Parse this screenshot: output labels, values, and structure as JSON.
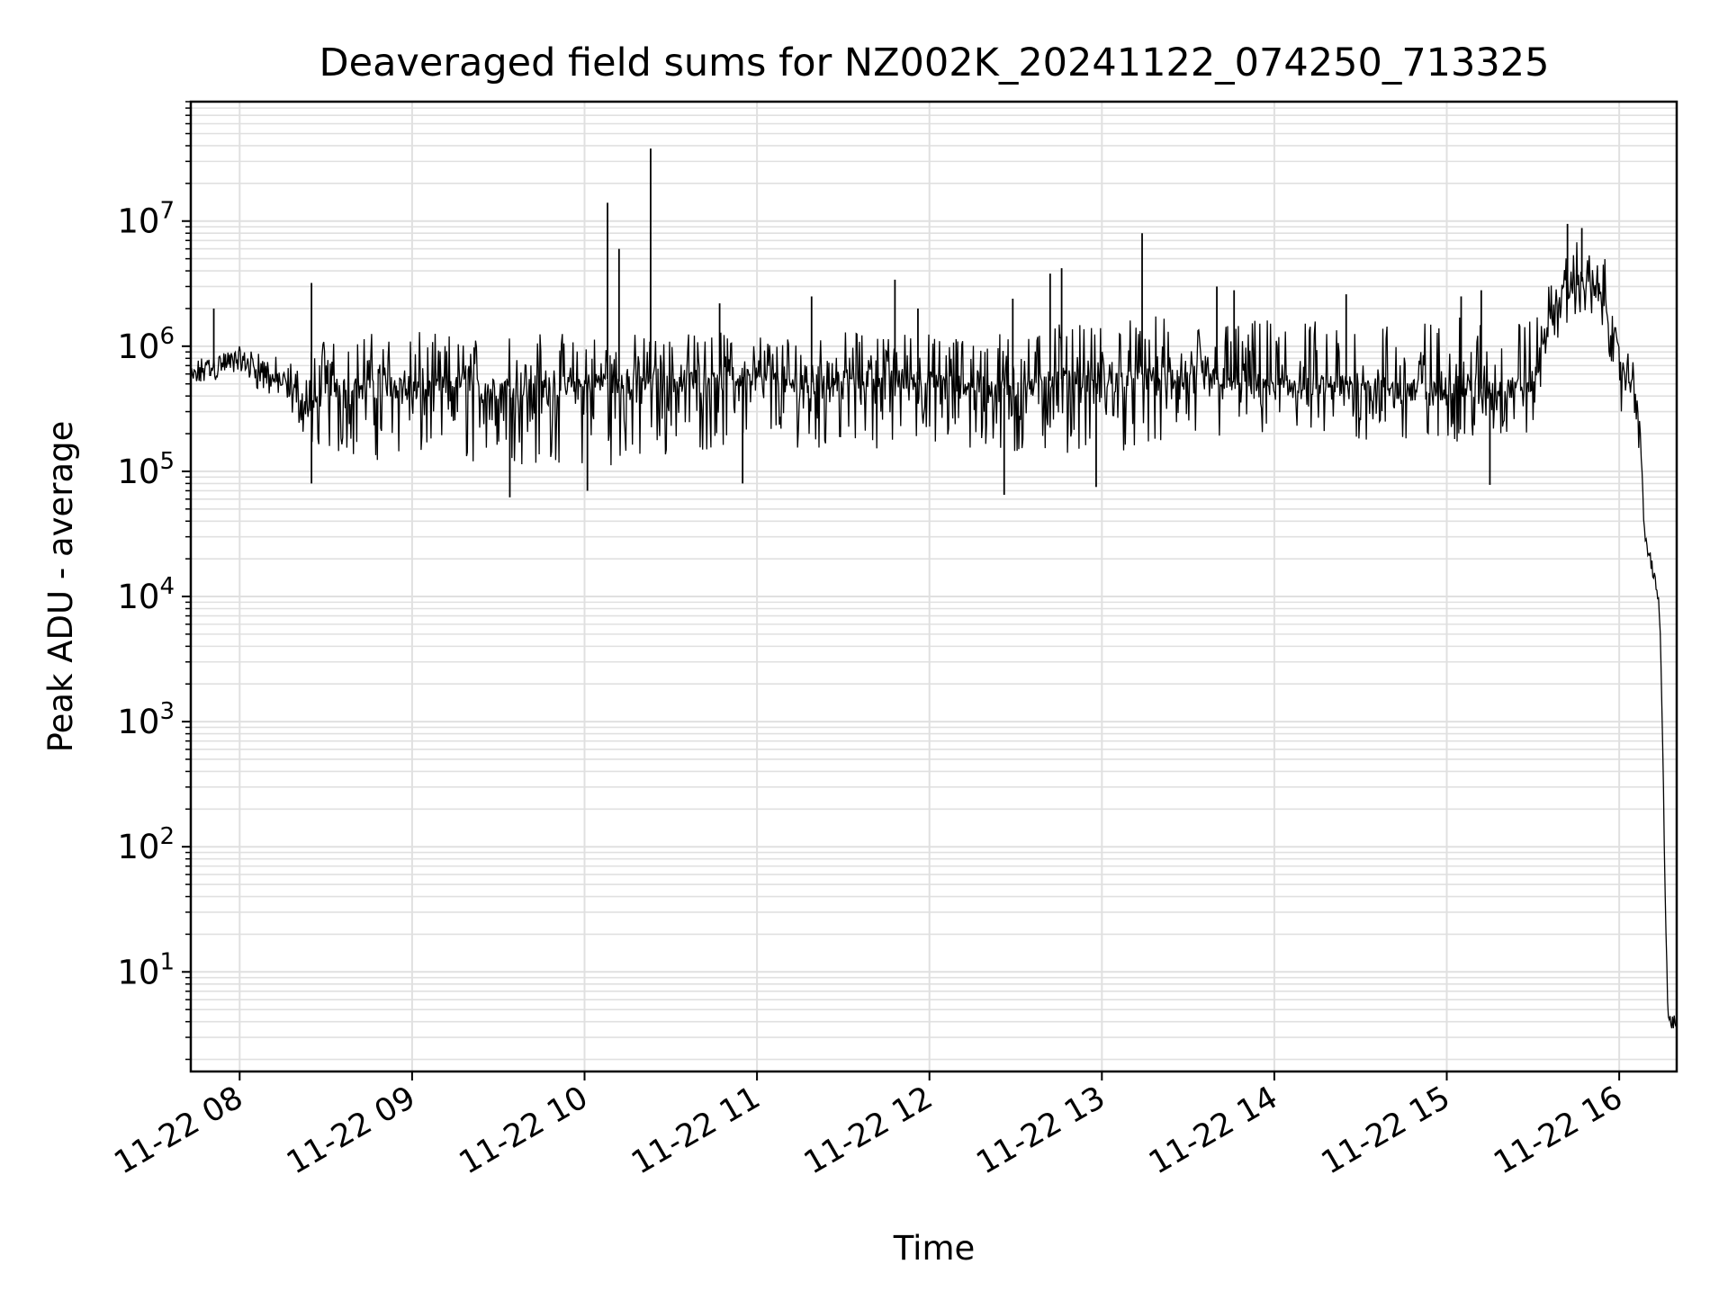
{
  "chart_data": {
    "type": "line",
    "title": "Deaveraged field sums for NZ002K_20241122_074250_713325",
    "xlabel": "Time",
    "ylabel": "Peak ADU - average",
    "yscale": "log",
    "ylim": [
      1.6,
      90000000
    ],
    "xlim": [
      "2024-11-22 07:43",
      "2024-11-22 16:20"
    ],
    "grid": true,
    "line_color": "#000000",
    "grid_color": "#e0e0e0",
    "x_tick_labels": [
      "11-22 08",
      "11-22 09",
      "11-22 10",
      "11-22 11",
      "11-22 12",
      "11-22 13",
      "11-22 14",
      "11-22 15",
      "11-22 16"
    ],
    "y_tick_labels": [
      {
        "base": "10",
        "exp": "1"
      },
      {
        "base": "10",
        "exp": "2"
      },
      {
        "base": "10",
        "exp": "3"
      },
      {
        "base": "10",
        "exp": "4"
      },
      {
        "base": "10",
        "exp": "5"
      },
      {
        "base": "10",
        "exp": "6"
      },
      {
        "base": "10",
        "exp": "7"
      }
    ],
    "series": [
      {
        "x": [
          "2024-11-22 07:43",
          "2024-11-22 07:50",
          "2024-11-22 08:00",
          "2024-11-22 08:05",
          "2024-11-22 08:10",
          "2024-11-22 08:15",
          "2024-11-22 08:20",
          "2024-11-22 08:25",
          "2024-11-22 08:30",
          "2024-11-22 08:40",
          "2024-11-22 08:50",
          "2024-11-22 09:00",
          "2024-11-22 09:15",
          "2024-11-22 09:30",
          "2024-11-22 09:45",
          "2024-11-22 10:00",
          "2024-11-22 10:08",
          "2024-11-22 10:15",
          "2024-11-22 10:23",
          "2024-11-22 10:30",
          "2024-11-22 10:45",
          "2024-11-22 11:00",
          "2024-11-22 11:15",
          "2024-11-22 11:30",
          "2024-11-22 11:45",
          "2024-11-22 12:00",
          "2024-11-22 12:15",
          "2024-11-22 12:30",
          "2024-11-22 12:45",
          "2024-11-22 13:00",
          "2024-11-22 13:15",
          "2024-11-22 13:30",
          "2024-11-22 13:45",
          "2024-11-22 14:00",
          "2024-11-22 14:15",
          "2024-11-22 14:30",
          "2024-11-22 14:45",
          "2024-11-22 15:00",
          "2024-11-22 15:15",
          "2024-11-22 15:30",
          "2024-11-22 15:35",
          "2024-11-22 15:40",
          "2024-11-22 15:45",
          "2024-11-22 15:50",
          "2024-11-22 15:55",
          "2024-11-22 16:00",
          "2024-11-22 16:03",
          "2024-11-22 16:06",
          "2024-11-22 16:09",
          "2024-11-22 16:12",
          "2024-11-22 16:14",
          "2024-11-22 16:15",
          "2024-11-22 16:16",
          "2024-11-22 16:17",
          "2024-11-22 16:20"
        ],
        "y": [
          550000,
          700000,
          800000,
          700000,
          600000,
          500000,
          400000,
          300000,
          500000,
          450000,
          500000,
          450000,
          500000,
          450000,
          480000,
          500000,
          550000,
          500000,
          550000,
          520000,
          600000,
          550000,
          500000,
          550000,
          600000,
          520000,
          500000,
          450000,
          550000,
          500000,
          600000,
          520000,
          550000,
          500000,
          480000,
          500000,
          450000,
          480000,
          450000,
          500000,
          1500000,
          2500000,
          3500000,
          3000000,
          2500000,
          800000,
          600000,
          500000,
          30000,
          15000,
          8000,
          1000,
          45,
          4,
          4
        ],
        "low": [
          450000,
          500000,
          600000,
          450000,
          400000,
          350000,
          250000,
          150000,
          130000,
          130000,
          120000,
          120000,
          120000,
          110000,
          110000,
          110000,
          110000,
          120000,
          110000,
          130000,
          150000,
          180000,
          150000,
          160000,
          150000,
          160000,
          130000,
          130000,
          140000,
          140000,
          150000,
          160000,
          180000,
          180000,
          170000,
          170000,
          160000,
          170000,
          170000,
          180000,
          800000,
          1200000,
          1800000,
          1500000,
          1000000,
          300000,
          300000,
          250000,
          20000,
          10000,
          5000,
          500,
          10,
          4,
          4
        ],
        "high": [
          750000,
          900000,
          1000000,
          1000000,
          900000,
          800000,
          700000,
          1200000,
          1300000,
          1300000,
          1300000,
          1300000,
          1300000,
          1300000,
          1300000,
          1300000,
          1300000,
          1300000,
          1300000,
          1300000,
          1300000,
          1300000,
          1200000,
          1300000,
          1300000,
          1300000,
          1300000,
          1300000,
          1500000,
          1500000,
          1800000,
          1600000,
          1600000,
          1700000,
          1700000,
          1600000,
          1600000,
          1700000,
          1700000,
          1800000,
          3000000,
          5000000,
          7000000,
          6000000,
          5000000,
          1000000,
          900000,
          800000,
          60000,
          20000,
          13000,
          2000,
          50,
          5,
          5
        ]
      }
    ],
    "spikes": [
      {
        "x": "2024-11-22 07:51",
        "y": 2000000
      },
      {
        "x": "2024-11-22 08:25",
        "y": 3200000
      },
      {
        "x": "2024-11-22 10:08",
        "y": 14000000
      },
      {
        "x": "2024-11-22 10:12",
        "y": 6000000
      },
      {
        "x": "2024-11-22 10:23",
        "y": 38000000
      },
      {
        "x": "2024-11-22 10:47",
        "y": 2200000
      },
      {
        "x": "2024-11-22 11:19",
        "y": 2500000
      },
      {
        "x": "2024-11-22 11:48",
        "y": 3400000
      },
      {
        "x": "2024-11-22 11:56",
        "y": 2000000
      },
      {
        "x": "2024-11-22 12:29",
        "y": 2400000
      },
      {
        "x": "2024-11-22 12:42",
        "y": 3800000
      },
      {
        "x": "2024-11-22 12:46",
        "y": 4200000
      },
      {
        "x": "2024-11-22 13:14",
        "y": 8000000
      },
      {
        "x": "2024-11-22 13:40",
        "y": 3000000
      },
      {
        "x": "2024-11-22 13:46",
        "y": 2800000
      },
      {
        "x": "2024-11-22 14:25",
        "y": 2600000
      },
      {
        "x": "2024-11-22 15:05",
        "y": 2500000
      },
      {
        "x": "2024-11-22 15:12",
        "y": 2800000
      },
      {
        "x": "2024-11-22 15:42",
        "y": 9500000
      },
      {
        "x": "2024-11-22 15:47",
        "y": 8800000
      }
    ],
    "dips": [
      {
        "x": "2024-11-22 08:25",
        "y": 80000
      },
      {
        "x": "2024-11-22 09:34",
        "y": 62000
      },
      {
        "x": "2024-11-22 10:01",
        "y": 70000
      },
      {
        "x": "2024-11-22 10:55",
        "y": 80000
      },
      {
        "x": "2024-11-22 12:26",
        "y": 65000
      },
      {
        "x": "2024-11-22 12:58",
        "y": 75000
      },
      {
        "x": "2024-11-22 15:15",
        "y": 78000
      }
    ]
  }
}
